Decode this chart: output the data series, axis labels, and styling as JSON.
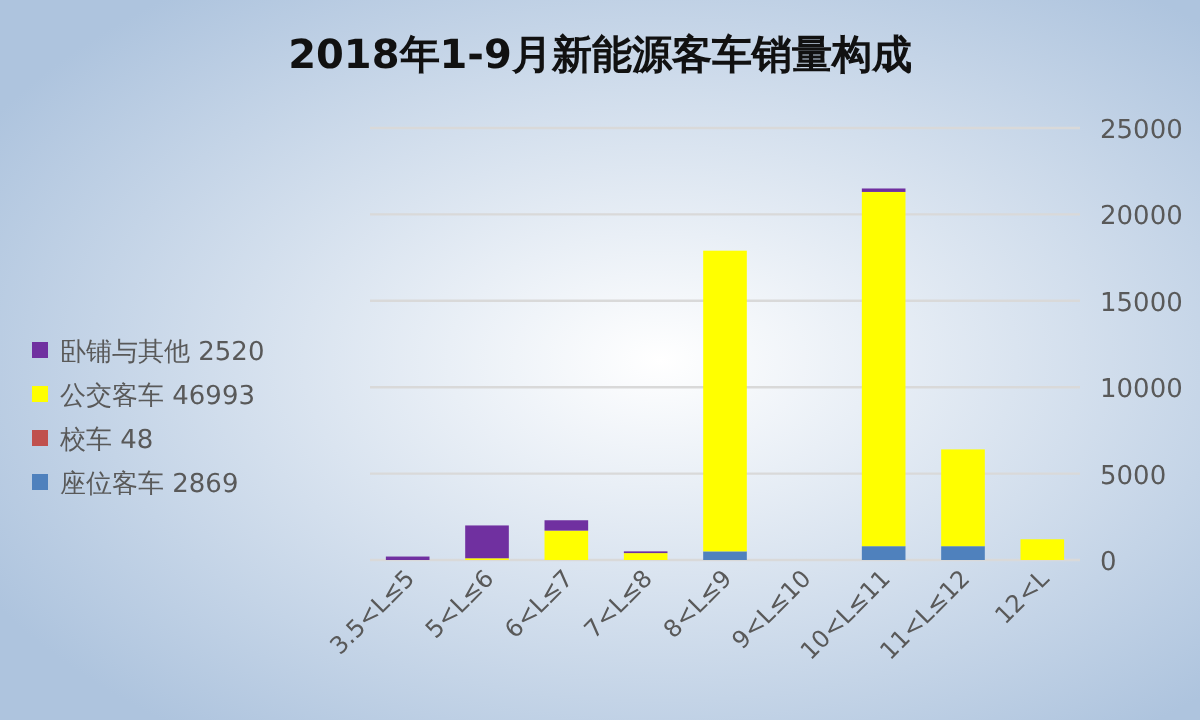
{
  "chart_data": {
    "type": "bar",
    "title": "2018年1-9月新能源客车销量构成",
    "stacked": true,
    "categories": [
      "3.5<L≤5",
      "5<L≤6",
      "6<L≤7",
      "7<L≤8",
      "8<L≤9",
      "9<L≤10",
      "10<L≤11",
      "11<L≤12",
      "12<L"
    ],
    "series": [
      {
        "name": "座位客车 2869",
        "color": "#4f81bd",
        "values": [
          null,
          null,
          null,
          null,
          500,
          null,
          800,
          800,
          null
        ]
      },
      {
        "name": "校车 48",
        "color": "#c0504d",
        "values": [
          null,
          null,
          null,
          null,
          null,
          null,
          null,
          null,
          null
        ]
      },
      {
        "name": "公交客车 46993",
        "color": "#ffff00",
        "values": [
          null,
          100,
          1700,
          400,
          17400,
          null,
          20500,
          5600,
          1200
        ]
      },
      {
        "name": "卧铺与其他 2520",
        "color": "#7030a0",
        "values": [
          200,
          1900,
          600,
          100,
          null,
          null,
          200,
          null,
          null
        ]
      }
    ],
    "ylim": [
      0,
      25000
    ],
    "yticks": [
      0,
      5000,
      10000,
      15000,
      20000,
      25000
    ],
    "grid": "y",
    "legend": "left"
  }
}
